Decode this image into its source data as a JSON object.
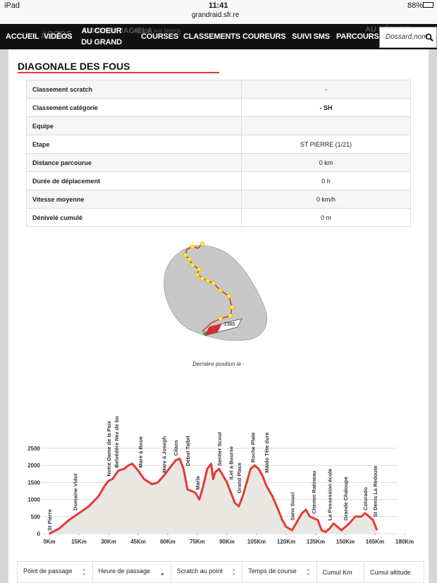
{
  "status_bar": {
    "device": "iPad",
    "time": "11:41",
    "battery": "88%",
    "url": "grandraid.sfr.re"
  },
  "runner_header": {
    "bib": "#2385",
    "name": "DOMINIK JAGIELA",
    "favorite": "Ajouter aux favoris",
    "state": "AU DÉPART"
  },
  "nav": {
    "items": [
      "ACCUEIL",
      "VIDÉOS",
      "AU COEUR DU GRAND RAID",
      "COURSES",
      "CLASSEMENTS",
      "COUREURS",
      "SUIVI SMS",
      "PARCOURS"
    ],
    "search_placeholder": "Dossard,nom"
  },
  "section_title": "DIAGONALE DES FOUS",
  "info_table": {
    "rows": [
      [
        "Classement scratch",
        "-"
      ],
      [
        "Classement catégorie",
        "- SH"
      ],
      [
        "Equipe",
        ""
      ],
      [
        "Etape",
        "ST PIERRE (1/21)"
      ],
      [
        "Distance parcourue",
        "0 km"
      ],
      [
        "Durée de déplacement",
        "0 h"
      ],
      [
        "Vitesse moyenne",
        "0 km/h"
      ],
      [
        "Dénivelé cumulé",
        "0 m"
      ]
    ]
  },
  "map": {
    "marker_label": "2385",
    "caption": "Dernière position le -"
  },
  "elevation_profile": {
    "type": "area",
    "km": [
      0,
      5,
      10,
      15,
      20,
      25,
      28,
      30,
      32,
      35,
      38,
      40,
      42,
      45,
      48,
      52,
      55,
      58,
      62,
      64,
      66,
      68,
      70,
      72,
      74,
      76,
      78,
      80,
      82,
      83,
      84,
      86,
      88,
      90,
      92,
      94,
      96,
      98,
      100,
      102,
      104,
      106,
      108,
      110,
      113,
      116,
      118,
      120,
      123,
      125,
      128,
      130,
      132,
      134,
      136,
      138,
      140,
      142,
      144,
      146,
      148,
      150,
      152,
      155,
      158,
      160,
      162,
      164,
      166
    ],
    "elevation": [
      0,
      150,
      400,
      600,
      800,
      1100,
      1400,
      1550,
      1600,
      1850,
      1900,
      2000,
      2050,
      1850,
      1600,
      1450,
      1500,
      1700,
      2000,
      2150,
      2200,
      1900,
      1300,
      1250,
      1200,
      1000,
      1400,
      1900,
      2050,
      1600,
      1800,
      1900,
      1700,
      1500,
      1200,
      900,
      800,
      1100,
      1500,
      1900,
      2000,
      1900,
      1700,
      1400,
      1100,
      700,
      400,
      200,
      100,
      300,
      600,
      700,
      500,
      450,
      400,
      100,
      50,
      150,
      300,
      200,
      100,
      200,
      300,
      500,
      500,
      600,
      500,
      400,
      100
    ],
    "color": "#e53935",
    "fill": "#e9e7e1",
    "xlim": [
      0,
      180
    ],
    "ylim": [
      0,
      2500
    ],
    "xticks": [
      {
        "value": 0,
        "label": "0Km"
      },
      {
        "value": 15,
        "label": "15Km"
      },
      {
        "value": 30,
        "label": "30Km"
      },
      {
        "value": 45,
        "label": "45Km"
      },
      {
        "value": 60,
        "label": "60Km"
      },
      {
        "value": 75,
        "label": "75Km"
      },
      {
        "value": 90,
        "label": "90Km"
      },
      {
        "value": 105,
        "label": "105Km"
      },
      {
        "value": 120,
        "label": "120Km"
      },
      {
        "value": 135,
        "label": "135Km"
      },
      {
        "value": 150,
        "label": "150Km"
      },
      {
        "value": 165,
        "label": "165Km"
      },
      {
        "value": 180,
        "label": "180Km"
      }
    ],
    "yticks": [
      0,
      500,
      1000,
      1500,
      2000,
      2500
    ],
    "grid": true,
    "waypoints": [
      {
        "label": "St Pierre",
        "km": 0
      },
      {
        "label": "Domaine Vidot",
        "km": 13
      },
      {
        "label": "Notre Dame de la Paix",
        "km": 30
      },
      {
        "label": "Belvédère Nez de boeuf",
        "km": 34
      },
      {
        "label": "Mare à Boue",
        "km": 46
      },
      {
        "label": "Mare à Joseph",
        "km": 58
      },
      {
        "label": "Cilaos",
        "km": 64
      },
      {
        "label": "Début Taïbit",
        "km": 70
      },
      {
        "label": "Marla",
        "km": 75
      },
      {
        "label": "Sentier Scout",
        "km": 86
      },
      {
        "label": "ILet à Bourse",
        "km": 92
      },
      {
        "label": "Grand Place",
        "km": 96
      },
      {
        "label": "Roche Plate",
        "km": 103
      },
      {
        "label": "Maïdo Tête dure",
        "km": 110
      },
      {
        "label": "Sans Souci",
        "km": 123
      },
      {
        "label": "Chemin Ratineau",
        "km": 134
      },
      {
        "label": "La Possession école",
        "km": 142
      },
      {
        "label": "Grande Chaloupe",
        "km": 150
      },
      {
        "label": "Colorado",
        "km": 160
      },
      {
        "label": "St Denis La Redoute",
        "km": 165
      }
    ]
  },
  "passage_table": {
    "headers": [
      "Point de passage",
      "Heure de passage",
      "Scratch au point",
      "Temps de course",
      "Cumul Km",
      "Cumul altitude"
    ]
  }
}
